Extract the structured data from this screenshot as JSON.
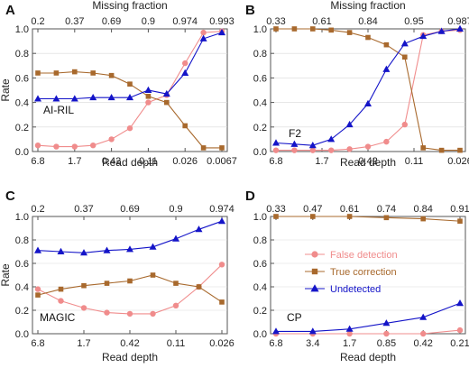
{
  "colors": {
    "false_detection": "#f08c8c",
    "true_correction": "#a8692d",
    "undetected": "#1414c8"
  },
  "legend": [
    {
      "key": "false_detection",
      "label": "False detection",
      "marker": "circle"
    },
    {
      "key": "true_correction",
      "label": "True correction",
      "marker": "square"
    },
    {
      "key": "undetected",
      "label": "Undetected",
      "marker": "triangle"
    }
  ],
  "chart_data": [
    {
      "panel": "A",
      "type": "line",
      "name": "AI-RIL",
      "title": "",
      "xlabel": "Read depth",
      "x2label": "Missing fraction",
      "ylabel": "Rate",
      "ylim": [
        0,
        1
      ],
      "yticks": [
        "0.0",
        "0.2",
        "0.4",
        "0.6",
        "0.8",
        "1.0"
      ],
      "xticks": [
        "6.8",
        "1.7",
        "0.42",
        "0.11",
        "0.026",
        "0.0067"
      ],
      "x2ticks": [
        "0.2",
        "0.37",
        "0.69",
        "0.9",
        "0.974",
        "0.993"
      ],
      "series": [
        {
          "key": "false_detection",
          "values": [
            0.05,
            0.04,
            0.04,
            0.05,
            0.1,
            0.19,
            0.4,
            0.46,
            0.72,
            0.97,
            0.98
          ]
        },
        {
          "key": "true_correction",
          "values": [
            0.64,
            0.64,
            0.65,
            0.64,
            0.62,
            0.55,
            0.45,
            0.4,
            0.21,
            0.03,
            0.03
          ]
        },
        {
          "key": "undetected",
          "values": [
            0.43,
            0.43,
            0.43,
            0.44,
            0.44,
            0.44,
            0.5,
            0.47,
            0.64,
            0.92,
            0.97
          ]
        }
      ]
    },
    {
      "panel": "B",
      "type": "line",
      "name": "F2",
      "title": "",
      "xlabel": "Read depth",
      "x2label": "Missing fraction",
      "ylabel": "",
      "ylim": [
        0,
        1
      ],
      "yticks": [
        "0.0",
        "0.2",
        "0.4",
        "0.6",
        "0.8",
        "1.0"
      ],
      "xticks": [
        "6.8",
        "1.7",
        "0.42",
        "0.11",
        "0.026"
      ],
      "x2ticks": [
        "0.33",
        "0.61",
        "0.84",
        "0.95",
        "0.987"
      ],
      "series": [
        {
          "key": "false_detection",
          "values": [
            0.01,
            0.01,
            0.01,
            0.01,
            0.02,
            0.04,
            0.08,
            0.22,
            0.95,
            0.98,
            0.99
          ]
        },
        {
          "key": "true_correction",
          "values": [
            1.0,
            1.0,
            1.0,
            0.99,
            0.97,
            0.93,
            0.87,
            0.77,
            0.03,
            0.01,
            0.01
          ]
        },
        {
          "key": "undetected",
          "values": [
            0.07,
            0.06,
            0.05,
            0.1,
            0.22,
            0.39,
            0.67,
            0.88,
            0.94,
            0.98,
            1.0
          ]
        }
      ]
    },
    {
      "panel": "C",
      "type": "line",
      "name": "MAGIC",
      "title": "",
      "xlabel": "Read depth",
      "x2label": "",
      "ylabel": "Rate",
      "ylim": [
        0,
        1
      ],
      "yticks": [
        "0.0",
        "0.2",
        "0.4",
        "0.6",
        "0.8",
        "1.0"
      ],
      "xticks": [
        "6.8",
        "1.7",
        "0.42",
        "0.11",
        "0.026"
      ],
      "x2ticks": [
        "0.2",
        "0.37",
        "0.69",
        "0.9",
        "0.974"
      ],
      "series": [
        {
          "key": "false_detection",
          "values": [
            0.38,
            0.28,
            0.22,
            0.18,
            0.17,
            0.17,
            0.24,
            0.4,
            0.59
          ]
        },
        {
          "key": "true_correction",
          "values": [
            0.33,
            0.38,
            0.41,
            0.43,
            0.45,
            0.5,
            0.43,
            0.4,
            0.27
          ]
        },
        {
          "key": "undetected",
          "values": [
            0.71,
            0.7,
            0.69,
            0.71,
            0.72,
            0.74,
            0.81,
            0.89,
            0.96
          ]
        }
      ]
    },
    {
      "panel": "D",
      "type": "line",
      "name": "CP",
      "title": "",
      "xlabel": "Read depth",
      "x2label": "",
      "ylabel": "",
      "ylim": [
        0,
        1
      ],
      "yticks": [
        "0.0",
        "0.2",
        "0.4",
        "0.6",
        "0.8",
        "1.0"
      ],
      "xticks": [
        "6.8",
        "3.4",
        "1.7",
        "0.85",
        "0.42",
        "0.21"
      ],
      "x2ticks": [
        "0.33",
        "0.47",
        "0.61",
        "0.74",
        "0.84",
        "0.91"
      ],
      "series": [
        {
          "key": "false_detection",
          "values": [
            0.0,
            0.0,
            0.0,
            0.0,
            0.0,
            0.03
          ]
        },
        {
          "key": "true_correction",
          "values": [
            1.0,
            1.0,
            1.0,
            0.99,
            0.98,
            0.96
          ]
        },
        {
          "key": "undetected",
          "values": [
            0.02,
            0.02,
            0.04,
            0.09,
            0.14,
            0.26
          ]
        }
      ]
    }
  ]
}
